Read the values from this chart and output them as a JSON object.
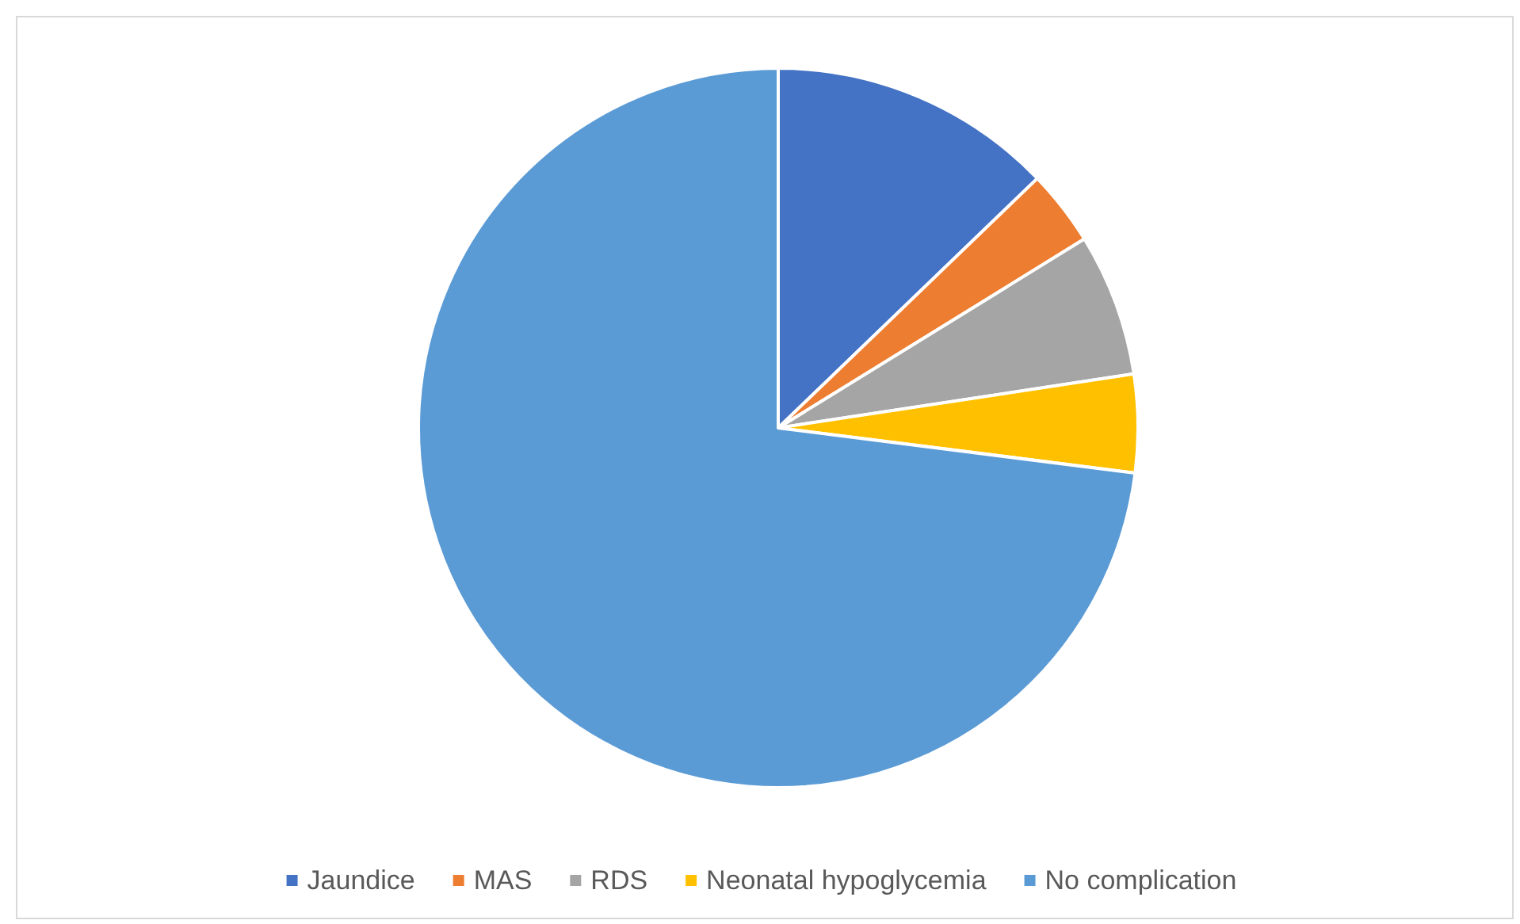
{
  "chart_data": {
    "type": "pie",
    "categories": [
      "Jaundice",
      "MAS",
      "RDS",
      "Neonatal hypoglycemia",
      "No complication"
    ],
    "values": [
      12.8,
      3.4,
      6.4,
      4.4,
      73.0
    ],
    "colors": [
      "#4472c4",
      "#ed7d31",
      "#a5a5a5",
      "#ffc000",
      "#5b9bd5"
    ],
    "legend": "bottom"
  }
}
